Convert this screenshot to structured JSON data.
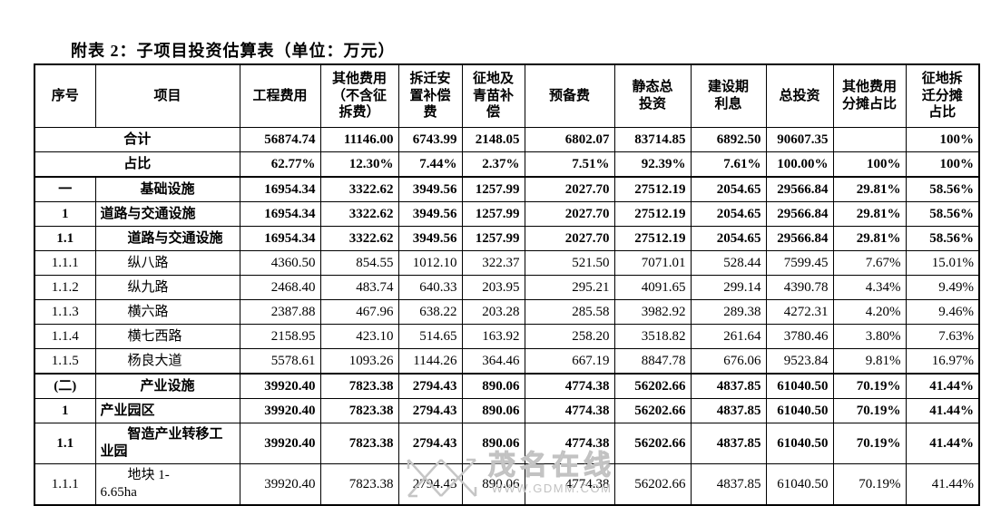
{
  "title": "附表 2：子项目投资估算表（单位：万元）",
  "table": {
    "columns": [
      {
        "label": "序号"
      },
      {
        "label": "项目"
      },
      {
        "label": "工程费用"
      },
      {
        "label": "其他费用\n（不含征\n拆费）"
      },
      {
        "label": "拆迁安\n置补偿\n费"
      },
      {
        "label": "征地及\n青苗补\n偿"
      },
      {
        "label": "预备费"
      },
      {
        "label": "静态总\n投资"
      },
      {
        "label": "建设期\n利息"
      },
      {
        "label": "总投资"
      },
      {
        "label": "其他费用\n分摊占比"
      },
      {
        "label": "征地拆\n迁分摊\n占比"
      }
    ],
    "rows": [
      {
        "seq": "",
        "name": "合计",
        "merged": true,
        "bold": true,
        "values": [
          "56874.74",
          "11146.00",
          "6743.99",
          "2148.05",
          "6802.07",
          "83714.85",
          "6892.50",
          "90607.35",
          "",
          "100%"
        ]
      },
      {
        "seq": "",
        "name": "占比",
        "merged": true,
        "bold": true,
        "values": [
          "62.77%",
          "12.30%",
          "7.44%",
          "2.37%",
          "7.51%",
          "92.39%",
          "7.61%",
          "100.00%",
          "100%",
          "100%"
        ]
      },
      {
        "seq": "一",
        "name": "基础设施",
        "bold": true,
        "nameStyle": "center",
        "sectionTop": true,
        "values": [
          "16954.34",
          "3322.62",
          "3949.56",
          "1257.99",
          "2027.70",
          "27512.19",
          "2054.65",
          "29566.84",
          "29.81%",
          "58.56%"
        ]
      },
      {
        "seq": "1",
        "name": "道路与交通设施",
        "bold": true,
        "nameStyle": "plain",
        "values": [
          "16954.34",
          "3322.62",
          "3949.56",
          "1257.99",
          "2027.70",
          "27512.19",
          "2054.65",
          "29566.84",
          "29.81%",
          "58.56%"
        ]
      },
      {
        "seq": "1.1",
        "name": "道路与交通设施",
        "bold": true,
        "nameStyle": "indent",
        "values": [
          "16954.34",
          "3322.62",
          "3949.56",
          "1257.99",
          "2027.70",
          "27512.19",
          "2054.65",
          "29566.84",
          "29.81%",
          "58.56%"
        ]
      },
      {
        "seq": "1.1.1",
        "name": "纵八路",
        "nameStyle": "indent",
        "values": [
          "4360.50",
          "854.55",
          "1012.10",
          "322.37",
          "521.50",
          "7071.01",
          "528.44",
          "7599.45",
          "7.67%",
          "15.01%"
        ]
      },
      {
        "seq": "1.1.2",
        "name": "纵九路",
        "nameStyle": "indent",
        "values": [
          "2468.40",
          "483.74",
          "640.33",
          "203.95",
          "295.21",
          "4091.65",
          "299.14",
          "4390.78",
          "4.34%",
          "9.49%"
        ]
      },
      {
        "seq": "1.1.3",
        "name": "横六路",
        "nameStyle": "indent",
        "values": [
          "2387.88",
          "467.96",
          "638.22",
          "203.28",
          "285.58",
          "3982.92",
          "289.38",
          "4272.31",
          "4.20%",
          "9.46%"
        ]
      },
      {
        "seq": "1.1.4",
        "name": "横七西路",
        "nameStyle": "indent",
        "values": [
          "2158.95",
          "423.10",
          "514.65",
          "163.92",
          "258.20",
          "3518.82",
          "261.64",
          "3780.46",
          "3.80%",
          "7.63%"
        ]
      },
      {
        "seq": "1.1.5",
        "name": "杨良大道",
        "nameStyle": "indent",
        "values": [
          "5578.61",
          "1093.26",
          "1144.26",
          "364.46",
          "667.19",
          "8847.78",
          "676.06",
          "9523.84",
          "9.81%",
          "16.97%"
        ]
      },
      {
        "seq": "(二)",
        "name": "产业设施",
        "bold": true,
        "nameStyle": "center",
        "sectionTop": true,
        "values": [
          "39920.40",
          "7823.38",
          "2794.43",
          "890.06",
          "4774.38",
          "56202.66",
          "4837.85",
          "61040.50",
          "70.19%",
          "41.44%"
        ]
      },
      {
        "seq": "1",
        "name": "产业园区",
        "bold": true,
        "nameStyle": "plain",
        "values": [
          "39920.40",
          "7823.38",
          "2794.43",
          "890.06",
          "4774.38",
          "56202.66",
          "4837.85",
          "61040.50",
          "70.19%",
          "41.44%"
        ]
      },
      {
        "seq": "1.1",
        "name": "智造产业转移工\n业园",
        "bold": true,
        "nameStyle": "indent",
        "tall": true,
        "values": [
          "39920.40",
          "7823.38",
          "2794.43",
          "890.06",
          "4774.38",
          "56202.66",
          "4837.85",
          "61040.50",
          "70.19%",
          "41.44%"
        ]
      },
      {
        "seq": "1.1.1",
        "name": "地块 1-\n6.65ha",
        "nameStyle": "indent",
        "tall": true,
        "values": [
          "39920.40",
          "7823.38",
          "2794.43",
          "890.06",
          "4774.38",
          "56202.66",
          "4837.85",
          "61040.50",
          "70.19%",
          "41.44%"
        ]
      }
    ]
  },
  "watermark": {
    "name": "茂名在线",
    "url": "WWW.GDMM.COM"
  }
}
